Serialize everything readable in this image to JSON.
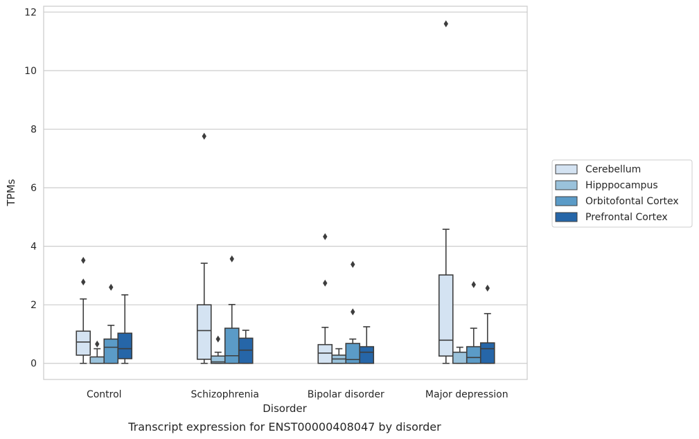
{
  "chart_data": {
    "type": "box",
    "caption": "Transcript expression for ENST00000408047 by disorder",
    "xlabel": "Disorder",
    "ylabel": "TPMs",
    "ylim": [
      -0.55,
      12.2
    ],
    "yticks": [
      0,
      2,
      4,
      6,
      8,
      10,
      12
    ],
    "grid": "horizontal",
    "legend_position": "right",
    "categories": [
      "Control",
      "Schizophrenia",
      "Bipolar disorder",
      "Major depression"
    ],
    "series": [
      {
        "name": "Cerebellum",
        "color": "#d4e3f2",
        "boxes": [
          {
            "whislo": 0.0,
            "q1": 0.28,
            "med": 0.73,
            "q3": 1.1,
            "whishi": 2.2,
            "fliers": [
              2.78,
              3.52
            ]
          },
          {
            "whislo": 0.0,
            "q1": 0.14,
            "med": 1.12,
            "q3": 2.0,
            "whishi": 3.42,
            "fliers": [
              7.76
            ]
          },
          {
            "whislo": 0.0,
            "q1": 0.0,
            "med": 0.35,
            "q3": 0.64,
            "whishi": 1.23,
            "fliers": [
              2.74,
              4.33
            ]
          },
          {
            "whislo": 0.0,
            "q1": 0.25,
            "med": 0.79,
            "q3": 3.02,
            "whishi": 4.58,
            "fliers": [
              11.6
            ]
          }
        ]
      },
      {
        "name": "Hipppocampus",
        "color": "#9ac2db",
        "boxes": [
          {
            "whislo": 0.0,
            "q1": 0.0,
            "med": 0.0,
            "q3": 0.22,
            "whishi": 0.5,
            "fliers": [
              0.66
            ]
          },
          {
            "whislo": 0.0,
            "q1": 0.0,
            "med": 0.05,
            "q3": 0.25,
            "whishi": 0.38,
            "fliers": [
              0.83
            ]
          },
          {
            "whislo": 0.0,
            "q1": 0.0,
            "med": 0.15,
            "q3": 0.28,
            "whishi": 0.5,
            "fliers": []
          },
          {
            "whislo": 0.0,
            "q1": 0.0,
            "med": 0.0,
            "q3": 0.38,
            "whishi": 0.55,
            "fliers": []
          }
        ]
      },
      {
        "name": "Orbitofontal Cortex",
        "color": "#5b9bc7",
        "boxes": [
          {
            "whislo": 0.0,
            "q1": 0.0,
            "med": 0.55,
            "q3": 0.83,
            "whishi": 1.3,
            "fliers": [
              2.6
            ]
          },
          {
            "whislo": 0.0,
            "q1": 0.0,
            "med": 0.26,
            "q3": 1.2,
            "whishi": 2.01,
            "fliers": [
              3.57
            ]
          },
          {
            "whislo": 0.0,
            "q1": 0.0,
            "med": 0.13,
            "q3": 0.68,
            "whishi": 0.83,
            "fliers": [
              1.76,
              3.38
            ]
          },
          {
            "whislo": 0.0,
            "q1": 0.0,
            "med": 0.2,
            "q3": 0.57,
            "whishi": 1.2,
            "fliers": [
              2.69
            ]
          }
        ]
      },
      {
        "name": "Prefrontal Cortex",
        "color": "#2666a8",
        "boxes": [
          {
            "whislo": 0.0,
            "q1": 0.16,
            "med": 0.5,
            "q3": 1.03,
            "whishi": 2.34,
            "fliers": []
          },
          {
            "whislo": 0.0,
            "q1": 0.0,
            "med": 0.45,
            "q3": 0.86,
            "whishi": 1.13,
            "fliers": []
          },
          {
            "whislo": 0.0,
            "q1": 0.0,
            "med": 0.38,
            "q3": 0.57,
            "whishi": 1.25,
            "fliers": []
          },
          {
            "whislo": 0.0,
            "q1": 0.0,
            "med": 0.5,
            "q3": 0.7,
            "whishi": 1.7,
            "fliers": [
              2.57
            ]
          }
        ]
      }
    ]
  }
}
